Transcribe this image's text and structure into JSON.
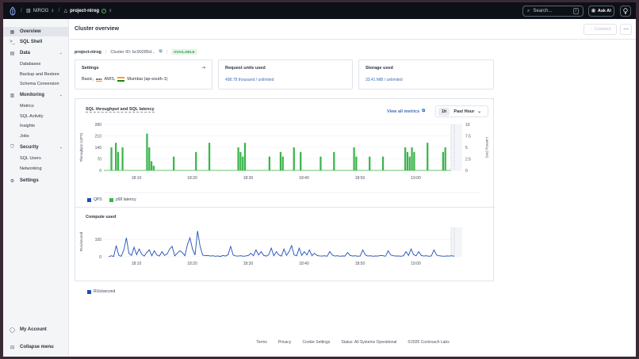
{
  "topbar": {
    "org": "NIROG",
    "project": "project-nirog",
    "search_placeholder": "Search...",
    "search_shortcut": "/",
    "ask_ai": "Ask AI"
  },
  "sidebar": {
    "items": [
      {
        "label": "Overview",
        "icon": "grid-icon"
      },
      {
        "label": "SQL Shell",
        "icon": "terminal-icon"
      },
      {
        "label": "Data",
        "icon": "table-icon"
      },
      {
        "label": "Monitoring",
        "icon": "chart-icon"
      },
      {
        "label": "Security",
        "icon": "shield-icon"
      },
      {
        "label": "Settings",
        "icon": "gear-icon"
      }
    ],
    "data_sub": [
      "Databases",
      "Backup and Restore",
      "Schema Conversion"
    ],
    "monitoring_sub": [
      "Metrics",
      "SQL Activity",
      "Insights",
      "Jobs"
    ],
    "security_sub": [
      "SQL Users",
      "Networking"
    ],
    "bottom": {
      "account": "My Account",
      "collapse": "Collapse menu"
    }
  },
  "page": {
    "title": "Cluster overview",
    "connect": "Connect",
    "cluster_name": "project-nirog",
    "cluster_id": "Cluster ID: bc90285d...",
    "status": "AVAILABLE"
  },
  "cards": {
    "settings": {
      "title": "Settings",
      "plan": "Basic,",
      "provider": "AWS,",
      "region": "Mumbai (ap-south-1)"
    },
    "request_units": {
      "title": "Request units used",
      "value": "498.78 thousand / unlimited"
    },
    "storage": {
      "title": "Storage used",
      "value": "33.41 MiB / unlimited"
    }
  },
  "sql_panel": {
    "title": "SQL throughput and SQL latency",
    "view_all": "View all metrics",
    "range_short": "1h",
    "range_label": "Past Hour",
    "ylabel_left": "Throughput (QPS)",
    "ylabel_right": "Latency (ms)",
    "legend": [
      {
        "label": "QPS",
        "color": "#1f4fb8"
      },
      {
        "label": "p99 latency",
        "color": "#3bb54a"
      }
    ]
  },
  "compute_panel": {
    "title": "Compute used",
    "ylabel": "RUs/second",
    "legend": [
      {
        "label": "RUs/second",
        "color": "#1f4fb8"
      }
    ]
  },
  "footer": [
    "Terms",
    "Privacy",
    "Cookie Settings",
    "Status: All Systems Operational",
    "©2026 Cockroach Labs"
  ],
  "chart_data": [
    {
      "type": "bar",
      "title": "SQL throughput and SQL latency",
      "xlabel": "",
      "ylabel": "Throughput (QPS)",
      "y2label": "Latency (ms)",
      "x_ticks": [
        "18:10",
        "18:20",
        "18:30",
        "18:40",
        "18:50",
        "19:00"
      ],
      "y_ticks": [
        0,
        70,
        140,
        210,
        280
      ],
      "y2_ticks": [
        0,
        2.5,
        5,
        7.5,
        10
      ],
      "ylim": [
        0,
        280
      ],
      "y2lim": [
        0,
        10
      ],
      "series": [
        {
          "name": "p99 latency",
          "type": "bar",
          "color": "#3bb54a",
          "values": [
            0,
            0,
            0,
            5,
            0,
            6,
            4,
            0,
            5,
            0,
            0,
            0,
            0,
            0,
            0,
            0,
            0,
            0,
            0,
            8,
            5,
            2,
            1,
            0,
            0,
            0,
            0,
            0,
            0,
            0,
            0,
            3,
            0,
            0,
            0,
            0,
            0,
            0,
            0,
            0,
            0,
            4,
            0,
            0,
            0,
            0,
            0,
            6,
            0,
            0,
            0,
            0,
            0,
            0,
            0,
            0,
            0,
            0,
            0,
            0,
            5,
            4,
            3,
            6,
            0,
            0,
            0,
            0,
            0,
            0,
            0,
            0,
            0,
            0,
            3,
            0,
            0,
            0,
            0,
            4,
            3,
            0,
            0,
            0,
            0,
            5,
            0,
            0,
            4,
            0,
            0,
            0,
            0,
            0,
            0,
            0,
            0,
            3,
            0,
            0,
            0,
            0,
            0,
            4,
            0,
            0,
            0,
            0,
            0,
            0,
            0,
            0,
            5,
            3,
            0,
            0,
            0,
            0,
            0,
            3,
            0,
            0,
            0,
            0,
            0,
            3,
            0,
            0,
            0,
            0,
            0,
            0,
            0,
            0,
            0,
            5,
            4,
            3,
            5,
            4,
            0,
            0,
            0,
            0,
            0,
            6,
            0,
            0,
            0,
            0,
            0,
            0,
            4,
            5,
            0,
            0
          ]
        },
        {
          "name": "QPS",
          "type": "line",
          "color": "#1f4fb8",
          "values": []
        }
      ]
    },
    {
      "type": "line",
      "title": "Compute used",
      "xlabel": "",
      "ylabel": "RUs/second",
      "x_ticks": [
        "18:10",
        "18:20",
        "18:30",
        "18:40",
        "18:50",
        "19:00"
      ],
      "y_ticks": [
        0,
        100
      ],
      "ylim": [
        0,
        170
      ],
      "series": [
        {
          "name": "RUs/second",
          "color": "#1f4fb8",
          "values": [
            0,
            6,
            2,
            65,
            8,
            3,
            40,
            110,
            20,
            8,
            55,
            12,
            45,
            15,
            4,
            25,
            40,
            6,
            35,
            10,
            4,
            30,
            8,
            15,
            45,
            60,
            5,
            20,
            35,
            25,
            6,
            70,
            110,
            45,
            10,
            150,
            60,
            10,
            6,
            8,
            4,
            6,
            3,
            5,
            2,
            8,
            4,
            12,
            60,
            10,
            5,
            4,
            6,
            3,
            5,
            8,
            20,
            6,
            40,
            10,
            30,
            8,
            4,
            12,
            50,
            6,
            30,
            10,
            4,
            45,
            8,
            30,
            65,
            10,
            6,
            50,
            8,
            30,
            10,
            40,
            6,
            20,
            8,
            5,
            4,
            6,
            3,
            30,
            10,
            4,
            6,
            3,
            5,
            4,
            25,
            8,
            4,
            6,
            3,
            5,
            40,
            10,
            4,
            6,
            3,
            5,
            4,
            8,
            6,
            3,
            35,
            10,
            6,
            4,
            5,
            3,
            6,
            30,
            8,
            45,
            12,
            6,
            30,
            8,
            4,
            6,
            3,
            5,
            40,
            10,
            6,
            4,
            3,
            5,
            4,
            6,
            3
          ]
        }
      ]
    }
  ]
}
